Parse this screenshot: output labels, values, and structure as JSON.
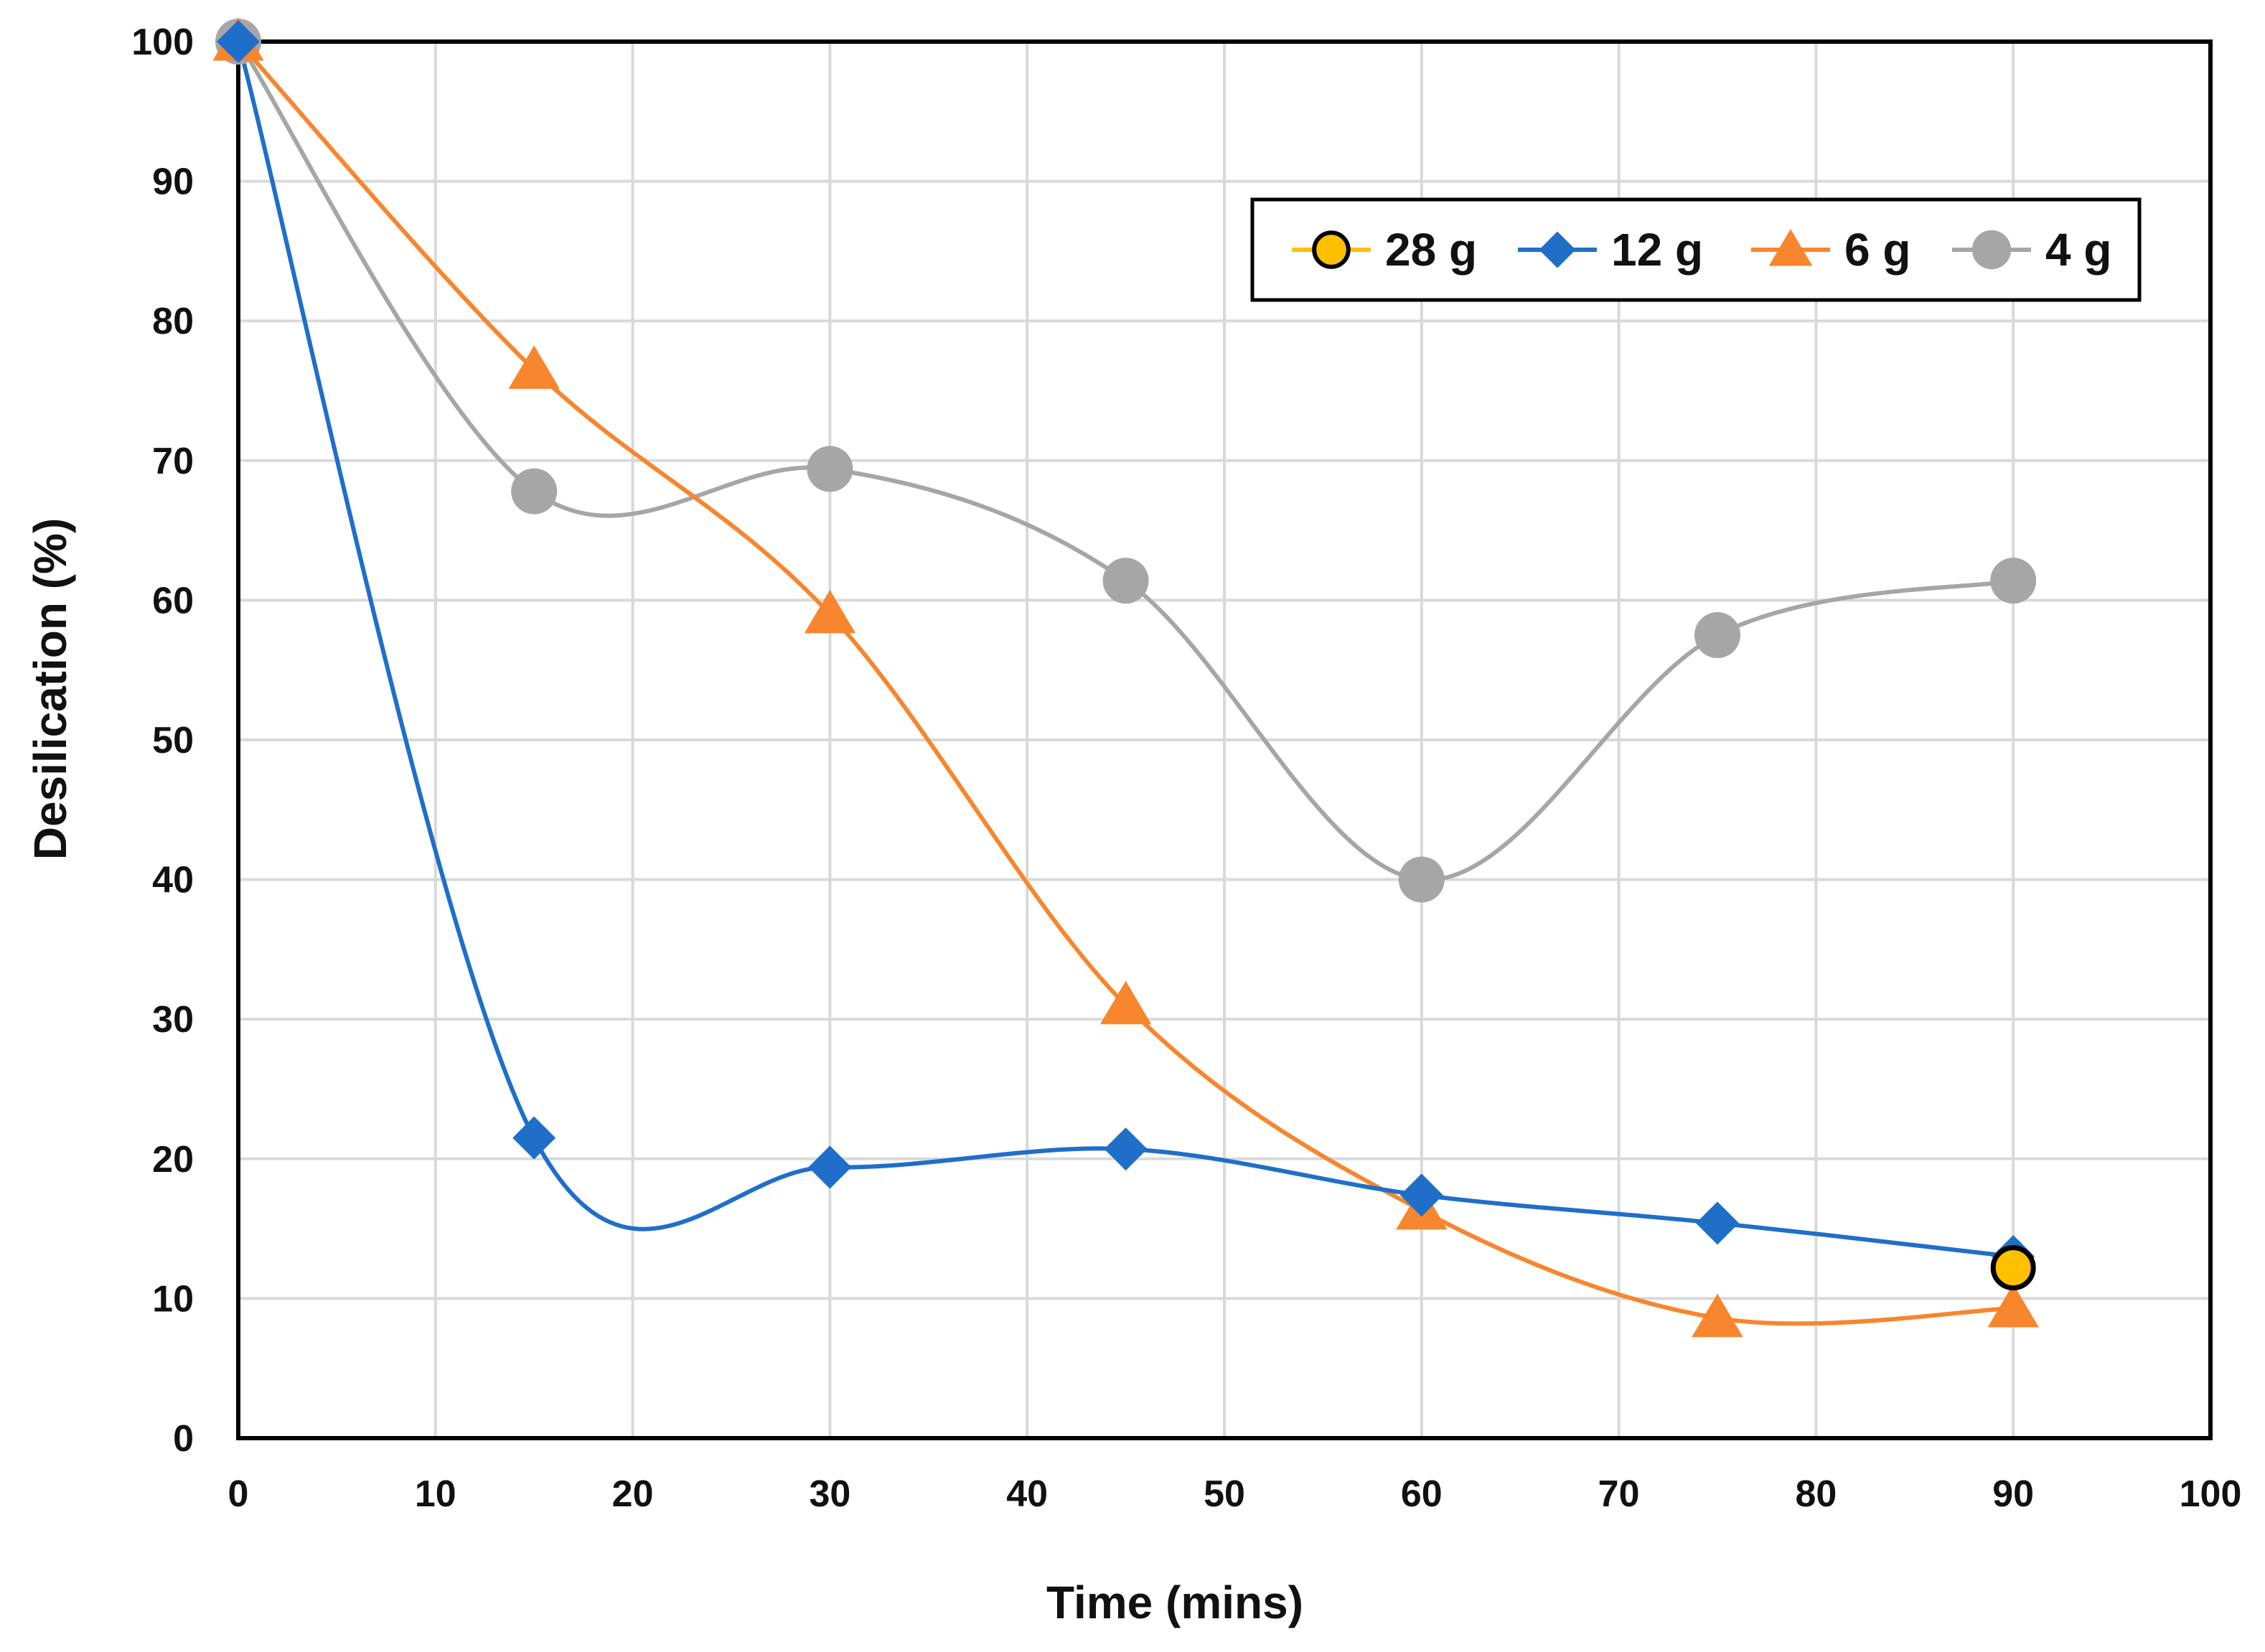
{
  "chart_data": {
    "type": "line",
    "title": "",
    "xlabel": "Time (mins)",
    "ylabel": "Desilication (%)",
    "xlim": [
      0,
      100
    ],
    "ylim": [
      0,
      100
    ],
    "xticks": [
      0,
      10,
      20,
      30,
      40,
      50,
      60,
      70,
      80,
      90,
      100
    ],
    "yticks": [
      0,
      10,
      20,
      30,
      40,
      50,
      60,
      70,
      80,
      90,
      100
    ],
    "grid": true,
    "legend_position": "top-right",
    "series": [
      {
        "name": "28 g",
        "color": "#FFC000",
        "marker": "circle-outlined",
        "x": [
          90
        ],
        "y": [
          12.2
        ]
      },
      {
        "name": "12 g",
        "color": "#1F6FC8",
        "marker": "diamond",
        "x": [
          0,
          15,
          30,
          45,
          60,
          75,
          90
        ],
        "y": [
          100,
          21.5,
          19.4,
          20.7,
          17.4,
          15.4,
          13.0
        ]
      },
      {
        "name": "6 g",
        "color": "#F7862E",
        "marker": "triangle",
        "x": [
          0,
          15,
          30,
          45,
          60,
          75,
          90
        ],
        "y": [
          100,
          76.5,
          59.0,
          31.0,
          16.3,
          8.6,
          9.3
        ]
      },
      {
        "name": "4 g",
        "color": "#A6A6A6",
        "marker": "circle",
        "x": [
          0,
          15,
          30,
          45,
          60,
          75,
          90
        ],
        "y": [
          100,
          67.8,
          69.4,
          61.4,
          40.0,
          57.5,
          61.4
        ]
      }
    ]
  }
}
